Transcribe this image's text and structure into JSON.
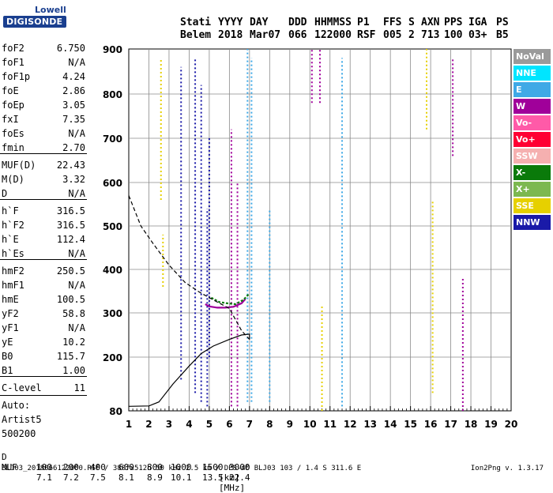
{
  "logo": {
    "line1": "Lowell",
    "line2": "DIGISONDE"
  },
  "header": {
    "row1": [
      "Stati",
      "YYYY",
      "DAY",
      "DDD",
      "HHMMSS",
      "P1",
      "FFS",
      "S",
      "AXN",
      "PPS",
      "IGA",
      "PS"
    ],
    "row2": [
      "Belem",
      "2018",
      "Mar07",
      "066",
      "122000",
      "RSF",
      "005",
      "2",
      "713",
      "100",
      "03+",
      "B5"
    ]
  },
  "params": [
    {
      "name": "foF2",
      "value": "6.750"
    },
    {
      "name": "foF1",
      "value": "N/A"
    },
    {
      "name": "foF1p",
      "value": "4.24"
    },
    {
      "name": "foE",
      "value": "2.86"
    },
    {
      "name": "foEp",
      "value": "3.05"
    },
    {
      "name": "fxI",
      "value": "7.35"
    },
    {
      "name": "foEs",
      "value": "N/A"
    },
    {
      "name": "fmin",
      "value": "2.70"
    },
    {
      "name": "MUF(D)",
      "value": "22.43"
    },
    {
      "name": "M(D)",
      "value": "3.32"
    },
    {
      "name": "D",
      "value": "N/A"
    },
    {
      "name": "h`F",
      "value": "316.5"
    },
    {
      "name": "h`F2",
      "value": "316.5"
    },
    {
      "name": "h`E",
      "value": "112.4"
    },
    {
      "name": "h`Es",
      "value": "N/A"
    },
    {
      "name": "hmF2",
      "value": "250.5"
    },
    {
      "name": "hmF1",
      "value": "N/A"
    },
    {
      "name": "hmE",
      "value": "100.5"
    },
    {
      "name": "yF2",
      "value": "58.8"
    },
    {
      "name": "yF1",
      "value": "N/A"
    },
    {
      "name": "yE",
      "value": "10.2"
    },
    {
      "name": "B0",
      "value": "115.7"
    },
    {
      "name": "B1",
      "value": "1.00"
    },
    {
      "name": "C-level",
      "value": "11"
    }
  ],
  "auto": {
    "line1": "Auto:",
    "line2": "Artist5",
    "line3": "500200"
  },
  "legend": [
    {
      "label": "NoVal",
      "color": "#9a9a9a"
    },
    {
      "label": "NNE",
      "color": "#00e5ff"
    },
    {
      "label": "E",
      "color": "#3fa9e6"
    },
    {
      "label": "W",
      "color": "#a0009a"
    },
    {
      "label": "Vo-",
      "color": "#ff5aa8"
    },
    {
      "label": "Vo+",
      "color": "#ff0033"
    },
    {
      "label": "SSW",
      "color": "#f5b0b0"
    },
    {
      "label": "X-",
      "color": "#0a7a0a"
    },
    {
      "label": "X+",
      "color": "#7cb850"
    },
    {
      "label": "SSE",
      "color": "#e6d000"
    },
    {
      "label": "NNW",
      "color": "#1a1aa8"
    }
  ],
  "footer": {
    "d_label": "D",
    "d_values": [
      "100",
      "200",
      "400",
      "600",
      "800",
      "1000",
      "1500",
      "3000"
    ],
    "d_unit": "[km]",
    "muf_label": "MUF",
    "muf_values": [
      "7.1",
      "7.2",
      "7.5",
      "8.1",
      "8.9",
      "10.1",
      "13.5",
      "22.4"
    ],
    "muf_unit": "[MHz]",
    "file_info": "BLJ03_2018066122000.RSF / 380fx512h 50 kHz 2.5 km / DPS-4D BLJ03 103 / 1.4 S 311.6 E",
    "version": "Ion2Png v. 1.3.17"
  },
  "chart_data": {
    "type": "scatter",
    "xlim": [
      1,
      20
    ],
    "ylim": [
      80,
      900
    ],
    "x_ticks": [
      "1",
      "2",
      "3",
      "4",
      "5",
      "6",
      "7",
      "8",
      "9",
      "10",
      "11",
      "12",
      "13",
      "14",
      "15",
      "16",
      "17",
      "18",
      "19",
      "20"
    ],
    "y_ticks": [
      "80",
      "200",
      "300",
      "400",
      "500",
      "600",
      "700",
      "800",
      "900"
    ],
    "grid": true,
    "legend_placement": "right",
    "traces": [
      {
        "freq": 3.6,
        "h_start": 150,
        "h_end": 860,
        "color": "#1a1aa8"
      },
      {
        "freq": 4.3,
        "h_start": 120,
        "h_end": 880,
        "color": "#1a1aa8"
      },
      {
        "freq": 4.6,
        "h_start": 100,
        "h_end": 820,
        "color": "#1a1aa8"
      },
      {
        "freq": 4.9,
        "h_start": 90,
        "h_end": 540,
        "color": "#1a1aa8"
      },
      {
        "freq": 5.0,
        "h_start": 200,
        "h_end": 700,
        "color": "#1a1aa8"
      },
      {
        "freq": 6.1,
        "h_start": 90,
        "h_end": 720,
        "color": "#a0009a"
      },
      {
        "freq": 6.4,
        "h_start": 90,
        "h_end": 600,
        "color": "#a0009a"
      },
      {
        "freq": 6.9,
        "h_start": 100,
        "h_end": 900,
        "color": "#3fa9e6"
      },
      {
        "freq": 7.1,
        "h_start": 100,
        "h_end": 880,
        "color": "#3fa9e6"
      },
      {
        "freq": 8.0,
        "h_start": 100,
        "h_end": 540,
        "color": "#3fa9e6"
      },
      {
        "freq": 10.1,
        "h_start": 780,
        "h_end": 900,
        "color": "#a0009a"
      },
      {
        "freq": 10.5,
        "h_start": 780,
        "h_end": 900,
        "color": "#a0009a"
      },
      {
        "freq": 11.6,
        "h_start": 90,
        "h_end": 880,
        "color": "#3fa9e6"
      },
      {
        "freq": 15.8,
        "h_start": 720,
        "h_end": 900,
        "color": "#e6d000"
      },
      {
        "freq": 16.1,
        "h_start": 120,
        "h_end": 560,
        "color": "#e6d000"
      },
      {
        "freq": 17.1,
        "h_start": 660,
        "h_end": 880,
        "color": "#a0009a"
      },
      {
        "freq": 17.6,
        "h_start": 80,
        "h_end": 380,
        "color": "#a0009a"
      },
      {
        "freq": 2.6,
        "h_start": 560,
        "h_end": 880,
        "color": "#e6d000"
      },
      {
        "freq": 2.7,
        "h_start": 360,
        "h_end": 480,
        "color": "#e6d000"
      },
      {
        "freq": 10.6,
        "h_start": 80,
        "h_end": 320,
        "color": "#e6d000"
      }
    ],
    "f_trace": [
      [
        4.8,
        320
      ],
      [
        5.0,
        315
      ],
      [
        5.4,
        312
      ],
      [
        5.8,
        312
      ],
      [
        6.2,
        314
      ],
      [
        6.6,
        322
      ],
      [
        6.8,
        332
      ]
    ],
    "f_trace_green": [
      [
        5.1,
        335
      ],
      [
        5.5,
        325
      ],
      [
        5.9,
        322
      ],
      [
        6.3,
        320
      ],
      [
        6.7,
        330
      ],
      [
        7.0,
        345
      ]
    ],
    "profile_solid": [
      [
        1.0,
        90
      ],
      [
        2.0,
        91
      ],
      [
        2.5,
        100
      ],
      [
        3.2,
        140
      ],
      [
        4.0,
        180
      ],
      [
        4.6,
        208
      ],
      [
        5.2,
        225
      ],
      [
        6.0,
        240
      ],
      [
        6.6,
        250
      ],
      [
        7.0,
        252
      ],
      [
        7.0,
        240
      ]
    ],
    "profile_dashed": [
      [
        1.0,
        570
      ],
      [
        1.6,
        500
      ],
      [
        2.2,
        460
      ],
      [
        3.0,
        410
      ],
      [
        3.8,
        370
      ],
      [
        4.5,
        348
      ],
      [
        5.0,
        335
      ],
      [
        6.0,
        310
      ],
      [
        6.6,
        260
      ],
      [
        7.0,
        240
      ]
    ]
  }
}
